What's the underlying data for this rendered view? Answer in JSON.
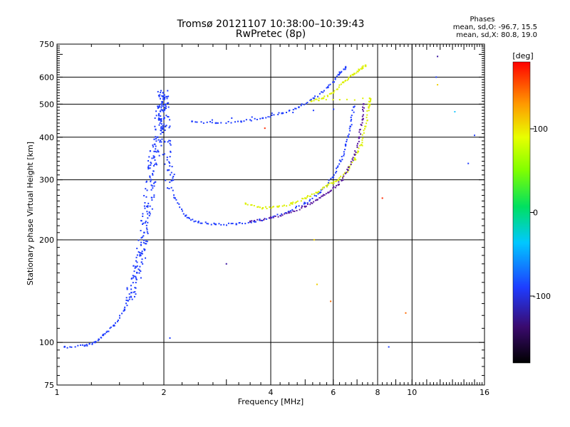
{
  "header": {
    "title_line1": "Tromsø 20121107 10:38:00–10:39:43",
    "title_line2": "RwPretec (8p)"
  },
  "phases_box": {
    "title": "Phases",
    "line_o": "mean, sd,O: -96.7, 15.5",
    "line_x": "mean, sd,X:  80.8, 19.0"
  },
  "colorbar": {
    "label": "[deg]",
    "ticks": [
      {
        "value": 100,
        "label": "100"
      },
      {
        "value": 0,
        "label": "0"
      },
      {
        "value": -100,
        "label": "-100"
      }
    ],
    "range": [
      -180,
      180
    ]
  },
  "chart_data": {
    "type": "scatter",
    "title": "Tromsø 20121107 10:38:00–10:39:43",
    "subtitle": "RwPretec (8p)",
    "xlabel": "Frequency [MHz]",
    "ylabel": "Stationary phase Virtual Height [km]",
    "x_scale": "log",
    "y_scale": "log",
    "xlim": [
      1,
      16
    ],
    "ylim": [
      75,
      750
    ],
    "x_ticks": [
      1,
      2,
      4,
      6,
      8,
      10,
      16
    ],
    "x_tick_labels": [
      "1",
      "2",
      "4",
      "6",
      "8",
      "10",
      "16"
    ],
    "y_ticks": [
      75,
      100,
      200,
      300,
      400,
      500,
      600,
      750
    ],
    "y_tick_labels": [
      "75",
      "100",
      "200",
      "300",
      "400",
      "500",
      "600",
      "750"
    ],
    "grid": true,
    "color_encodes": "phase [deg]",
    "series": [
      {
        "mode": "O",
        "color": "#1e3cff",
        "points": [
          [
            1.05,
            97
          ],
          [
            1.2,
            98
          ],
          [
            1.28,
            100
          ],
          [
            1.35,
            105
          ],
          [
            1.45,
            112
          ],
          [
            1.55,
            125
          ],
          [
            1.62,
            140
          ],
          [
            1.68,
            160
          ],
          [
            1.72,
            180
          ],
          [
            1.76,
            210
          ],
          [
            1.8,
            250
          ],
          [
            1.84,
            300
          ],
          [
            1.88,
            350
          ],
          [
            1.92,
            400
          ],
          [
            1.95,
            450
          ],
          [
            1.97,
            500
          ],
          [
            1.99,
            540
          ],
          [
            2.02,
            430
          ],
          [
            2.05,
            320
          ],
          [
            2.15,
            265
          ],
          [
            2.3,
            235
          ],
          [
            2.5,
            225
          ],
          [
            2.8,
            222
          ],
          [
            3.2,
            222
          ],
          [
            3.6,
            226
          ],
          [
            4.0,
            232
          ],
          [
            4.5,
            242
          ],
          [
            5.0,
            256
          ],
          [
            5.5,
            275
          ],
          [
            6.0,
            305
          ],
          [
            6.3,
            340
          ],
          [
            6.5,
            380
          ],
          [
            6.7,
            430
          ],
          [
            6.85,
            490
          ],
          [
            2.4,
            445
          ],
          [
            2.8,
            440
          ],
          [
            3.3,
            445
          ],
          [
            3.8,
            455
          ],
          [
            4.3,
            470
          ],
          [
            4.8,
            490
          ],
          [
            5.3,
            520
          ],
          [
            5.8,
            560
          ],
          [
            6.2,
            610
          ],
          [
            6.5,
            640
          ]
        ]
      },
      {
        "mode": "X",
        "color": "#dcf000",
        "points": [
          [
            3.4,
            255
          ],
          [
            3.8,
            248
          ],
          [
            4.2,
            250
          ],
          [
            4.6,
            255
          ],
          [
            5.0,
            265
          ],
          [
            5.4,
            275
          ],
          [
            5.8,
            290
          ],
          [
            6.2,
            300
          ],
          [
            6.6,
            320
          ],
          [
            6.9,
            345
          ],
          [
            7.2,
            380
          ],
          [
            7.4,
            430
          ],
          [
            7.55,
            490
          ],
          [
            7.6,
            520
          ],
          [
            5.2,
            510
          ],
          [
            5.6,
            520
          ],
          [
            6.0,
            540
          ],
          [
            6.4,
            580
          ],
          [
            6.8,
            610
          ],
          [
            7.1,
            630
          ],
          [
            7.4,
            650
          ]
        ]
      },
      {
        "mode": "X-purple",
        "color": "#5a1aa0",
        "points": [
          [
            3.5,
            226
          ],
          [
            4.0,
            232
          ],
          [
            4.5,
            240
          ],
          [
            5.0,
            250
          ],
          [
            5.4,
            262
          ],
          [
            5.8,
            275
          ],
          [
            6.2,
            290
          ],
          [
            6.6,
            320
          ],
          [
            6.9,
            355
          ],
          [
            7.1,
            400
          ],
          [
            7.25,
            450
          ],
          [
            7.3,
            500
          ]
        ]
      }
    ],
    "scattered_points": [
      {
        "x": 3.85,
        "y": 425,
        "color": "#ff2a00"
      },
      {
        "x": 8.25,
        "y": 265,
        "color": "#ff2a00"
      },
      {
        "x": 9.6,
        "y": 122,
        "color": "#ff6a00"
      },
      {
        "x": 5.9,
        "y": 132,
        "color": "#ff6a00"
      },
      {
        "x": 11.7,
        "y": 600,
        "color": "#2040ff"
      },
      {
        "x": 13.2,
        "y": 475,
        "color": "#1ec8ff"
      },
      {
        "x": 14.4,
        "y": 335,
        "color": "#1e3cff"
      },
      {
        "x": 15.0,
        "y": 405,
        "color": "#1e3cff"
      },
      {
        "x": 11.8,
        "y": 690,
        "color": "#3a14a0"
      },
      {
        "x": 11.8,
        "y": 570,
        "color": "#f0d000"
      },
      {
        "x": 8.6,
        "y": 97,
        "color": "#2040ff"
      },
      {
        "x": 3.0,
        "y": 170,
        "color": "#3a14a0"
      },
      {
        "x": 2.08,
        "y": 103,
        "color": "#1e3cff"
      },
      {
        "x": 5.3,
        "y": 200,
        "color": "#f0d000"
      },
      {
        "x": 5.4,
        "y": 148,
        "color": "#f0d000"
      }
    ]
  }
}
